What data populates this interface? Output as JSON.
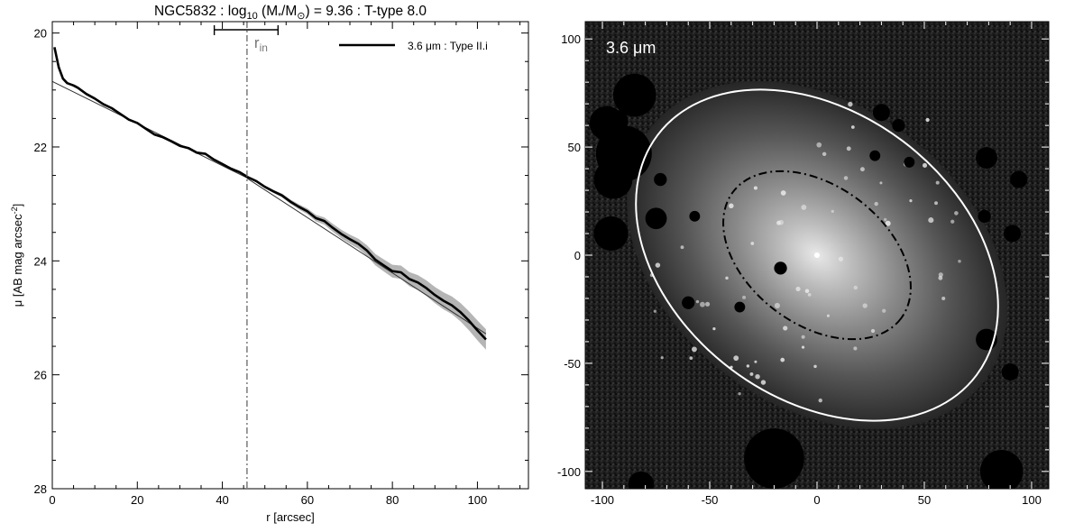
{
  "chart_data": [
    {
      "type": "line",
      "title": {
        "base": "NGC5832 : log",
        "sub": "10",
        "mid": " (M",
        "star": "*",
        "div": "/M",
        "sun": "⊙",
        "tail": ") = 9.36 : T-type 8.0"
      },
      "xlabel": "r [arcsec]",
      "ylabel": {
        "text": "μ [AB mag arcsec",
        "sup": "-2",
        "close": "]"
      },
      "xlim": [
        0,
        112
      ],
      "ylim": [
        28,
        19.8
      ],
      "y_inverted": true,
      "xticks": [
        0,
        20,
        40,
        60,
        80,
        100
      ],
      "yticks": [
        20,
        22,
        24,
        26,
        28
      ],
      "legend": {
        "label": "3.6 μm : Type II.i",
        "placement": "top-right"
      },
      "r_in": {
        "label_main": "r",
        "label_sub": "in",
        "value": 45.8,
        "bar": [
          38.1,
          53.1
        ]
      },
      "series": [
        {
          "name": "3.6 μm : Type II.i",
          "x": [
            0.5,
            1.5,
            2.5,
            3.5,
            5,
            6,
            8,
            10,
            12,
            14,
            16,
            18,
            20,
            22,
            24,
            26,
            28,
            30,
            32,
            34,
            36,
            38,
            40,
            42,
            44,
            46,
            48,
            50,
            52,
            54,
            56,
            58,
            60,
            62,
            64,
            66,
            68,
            70,
            72,
            74,
            76,
            78,
            80,
            82,
            84,
            86,
            88,
            90,
            92,
            94,
            96,
            98,
            100,
            102
          ],
          "y": [
            20.25,
            20.6,
            20.8,
            20.88,
            20.92,
            20.96,
            21.07,
            21.15,
            21.25,
            21.32,
            21.42,
            21.52,
            21.58,
            21.68,
            21.78,
            21.83,
            21.9,
            21.98,
            22.02,
            22.1,
            22.12,
            22.22,
            22.3,
            22.38,
            22.44,
            22.53,
            22.6,
            22.7,
            22.78,
            22.85,
            22.96,
            23.05,
            23.13,
            23.25,
            23.3,
            23.42,
            23.53,
            23.62,
            23.7,
            23.82,
            23.98,
            24.08,
            24.18,
            24.2,
            24.32,
            24.38,
            24.48,
            24.6,
            24.7,
            24.78,
            24.9,
            25.05,
            25.22,
            25.38
          ]
        }
      ],
      "fits": [
        {
          "x": [
            0,
            46
          ],
          "y": [
            20.85,
            22.55
          ]
        },
        {
          "x": [
            45.8,
            102
          ],
          "y": [
            22.55,
            25.28
          ]
        }
      ]
    },
    {
      "type": "heatmap",
      "band_label": "3.6 μm",
      "xlim": [
        -108,
        108
      ],
      "ylim": [
        -108,
        108
      ],
      "xticks": [
        -100,
        -50,
        0,
        50,
        100
      ],
      "yticks": [
        -100,
        -50,
        0,
        50,
        100
      ],
      "outer_ellipse": {
        "cx": 0,
        "cy": 0,
        "a": 93,
        "b": 66,
        "pa": -37
      },
      "inner_ellipse": {
        "cx": 0,
        "cy": 0,
        "a": 49,
        "b": 32,
        "pa": -37
      },
      "masks": [
        {
          "x": -85,
          "y": 74,
          "r": 10
        },
        {
          "x": -93,
          "y": 62,
          "r": 5
        },
        {
          "x": -90,
          "y": 47,
          "r": 13
        },
        {
          "x": -98,
          "y": 61,
          "r": 8
        },
        {
          "x": -95,
          "y": 35,
          "r": 9
        },
        {
          "x": -96,
          "y": 10,
          "r": 8
        },
        {
          "x": -73,
          "y": 35,
          "r": 3
        },
        {
          "x": -75,
          "y": 17,
          "r": 5
        },
        {
          "x": -57,
          "y": 18,
          "r": 2.5
        },
        {
          "x": 27,
          "y": 46,
          "r": 2.5
        },
        {
          "x": 30,
          "y": 66,
          "r": 4
        },
        {
          "x": 38,
          "y": 60,
          "r": 3
        },
        {
          "x": 43,
          "y": 43,
          "r": 2.5
        },
        {
          "x": 78,
          "y": 18,
          "r": 3
        },
        {
          "x": 91,
          "y": 10,
          "r": 4
        },
        {
          "x": 79,
          "y": 45,
          "r": 5
        },
        {
          "x": 94,
          "y": 35,
          "r": 4
        },
        {
          "x": -17,
          "y": -6,
          "r": 3
        },
        {
          "x": -36,
          "y": -24,
          "r": 2.5
        },
        {
          "x": 79,
          "y": -39,
          "r": 5
        },
        {
          "x": 90,
          "y": -54,
          "r": 4
        },
        {
          "x": -60,
          "y": -22,
          "r": 3
        },
        {
          "x": -20,
          "y": -94,
          "r": 14
        },
        {
          "x": 86,
          "y": -100,
          "r": 10
        },
        {
          "x": -82,
          "y": -106,
          "r": 6
        }
      ]
    }
  ]
}
